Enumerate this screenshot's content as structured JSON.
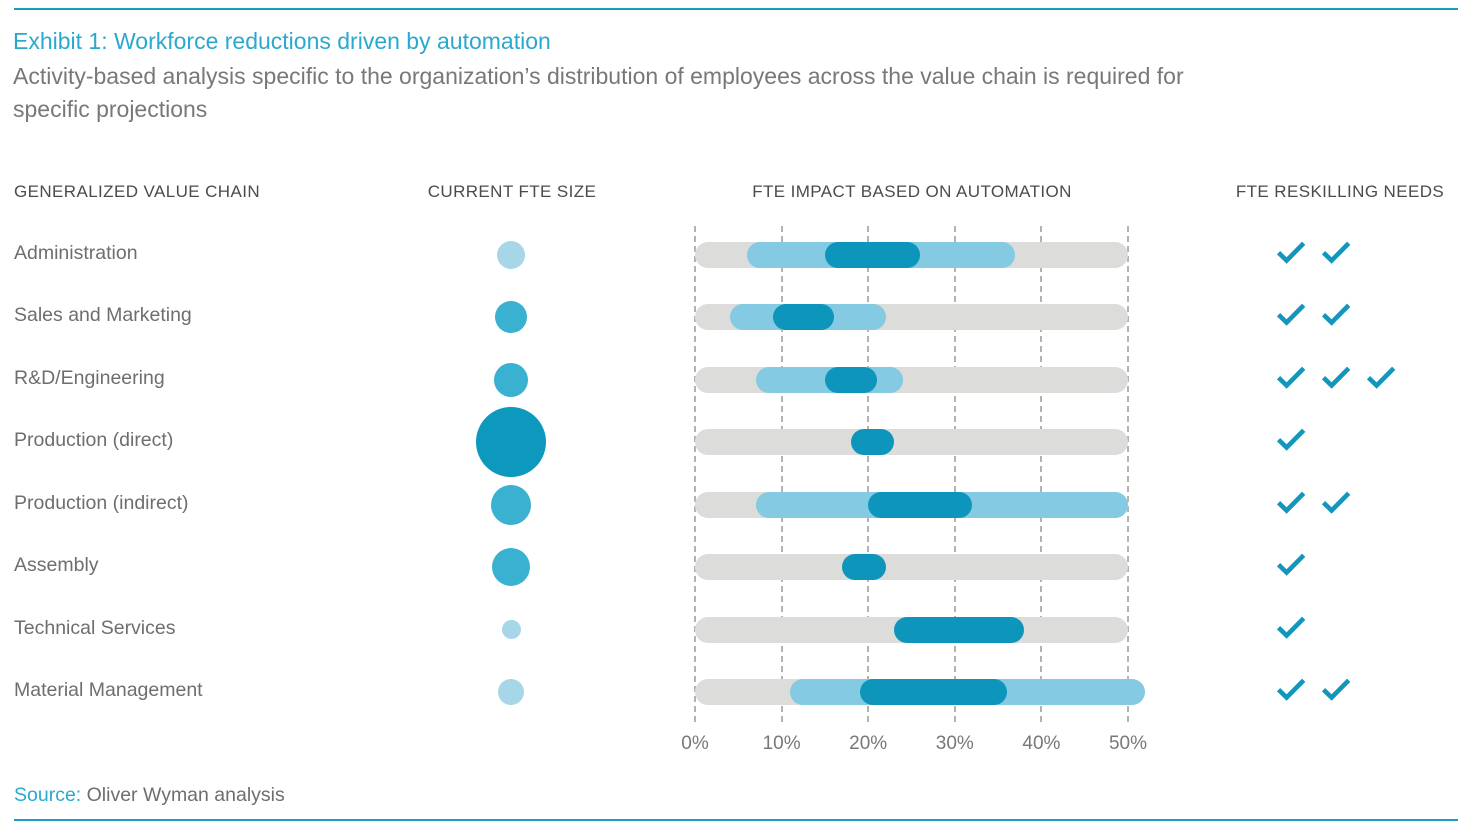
{
  "page": {
    "title": "Exhibit 1: Workforce reductions driven by automation",
    "subtitle": "Activity-based analysis specific to the organization’s distribution of employees across the value chain is required for specific projections",
    "subtitle_lines": [
      "Activity-based analysis specific to the organization’s distribution of employees across the value chain is required for",
      "specific projections"
    ]
  },
  "columns": [
    {
      "label": "GENERALIZED VALUE CHAIN"
    },
    {
      "label": "CURRENT FTE SIZE"
    },
    {
      "label": "FTE IMPACT BASED ON AUTOMATION"
    },
    {
      "label": "FTE RESKILLING NEEDS"
    }
  ],
  "source": {
    "label": "Source:",
    "text": " Oliver Wyman analysis"
  },
  "chart_data": {
    "type": "bar",
    "subtype": "horizontal-range-bars-with-bubbles-and-checks",
    "title": "FTE IMPACT BASED ON AUTOMATION",
    "x_axis": {
      "unit": "%",
      "min": 0,
      "max": 50,
      "ticks": [
        "0%",
        "10%",
        "20%",
        "30%",
        "40%",
        "50%"
      ],
      "gridlines": "dashed-vertical"
    },
    "legend_notes": {
      "gray_track": "full 0-50% scale",
      "light_blue_bar": "possible FTE impact range (%)",
      "dark_blue_bar": "likely FTE impact range (%)",
      "bubble": "current FTE size (relative)",
      "checks": "FTE reskilling needs (count)"
    },
    "rows": [
      {
        "label": "Administration",
        "fte_bubble": {
          "relative_size": 28,
          "tone": "light"
        },
        "impact_range_pct": [
          6,
          37
        ],
        "likely_range_pct": [
          15,
          26
        ],
        "reskilling_checks": 2
      },
      {
        "label": "Sales and Marketing",
        "fte_bubble": {
          "relative_size": 32,
          "tone": "medium"
        },
        "impact_range_pct": [
          4,
          22
        ],
        "likely_range_pct": [
          9,
          16
        ],
        "reskilling_checks": 2
      },
      {
        "label": "R&D/Engineering",
        "fte_bubble": {
          "relative_size": 34,
          "tone": "medium"
        },
        "impact_range_pct": [
          7,
          24
        ],
        "likely_range_pct": [
          15,
          21
        ],
        "reskilling_checks": 3
      },
      {
        "label": "Production (direct)",
        "fte_bubble": {
          "relative_size": 70,
          "tone": "dark"
        },
        "impact_range_pct": null,
        "likely_range_pct": [
          18,
          23
        ],
        "reskilling_checks": 1
      },
      {
        "label": "Production (indirect)",
        "fte_bubble": {
          "relative_size": 40,
          "tone": "medium"
        },
        "impact_range_pct": [
          7,
          50
        ],
        "likely_range_pct": [
          20,
          32
        ],
        "reskilling_checks": 2
      },
      {
        "label": "Assembly",
        "fte_bubble": {
          "relative_size": 38,
          "tone": "medium"
        },
        "impact_range_pct": null,
        "likely_range_pct": [
          17,
          22
        ],
        "reskilling_checks": 1
      },
      {
        "label": "Technical Services",
        "fte_bubble": {
          "relative_size": 19,
          "tone": "light"
        },
        "impact_range_pct": null,
        "likely_range_pct": [
          23,
          38
        ],
        "reskilling_checks": 1
      },
      {
        "label": "Material Management",
        "fte_bubble": {
          "relative_size": 26,
          "tone": "light"
        },
        "impact_range_pct": [
          11,
          52
        ],
        "likely_range_pct": [
          19,
          36
        ],
        "reskilling_checks": 2
      }
    ]
  },
  "colors": {
    "rule_teal": "#18a0b8",
    "title_cyan": "#29a9cd",
    "subtitle_gray": "#77787a",
    "header_gray": "#4b4b4d",
    "label_gray": "#6d6e70",
    "axis_gray": "#77787a",
    "track_gray": "#dcdcdb",
    "impact_light_blue": "#83cae2",
    "impact_dark_blue": "#0d95bb",
    "bubble_light": "#a6d6e8",
    "bubble_medium": "#3ab1d0",
    "bubble_dark": "#0d98bd",
    "check_teal": "#1496bc",
    "gridline_gray": "#b3b3b3"
  }
}
